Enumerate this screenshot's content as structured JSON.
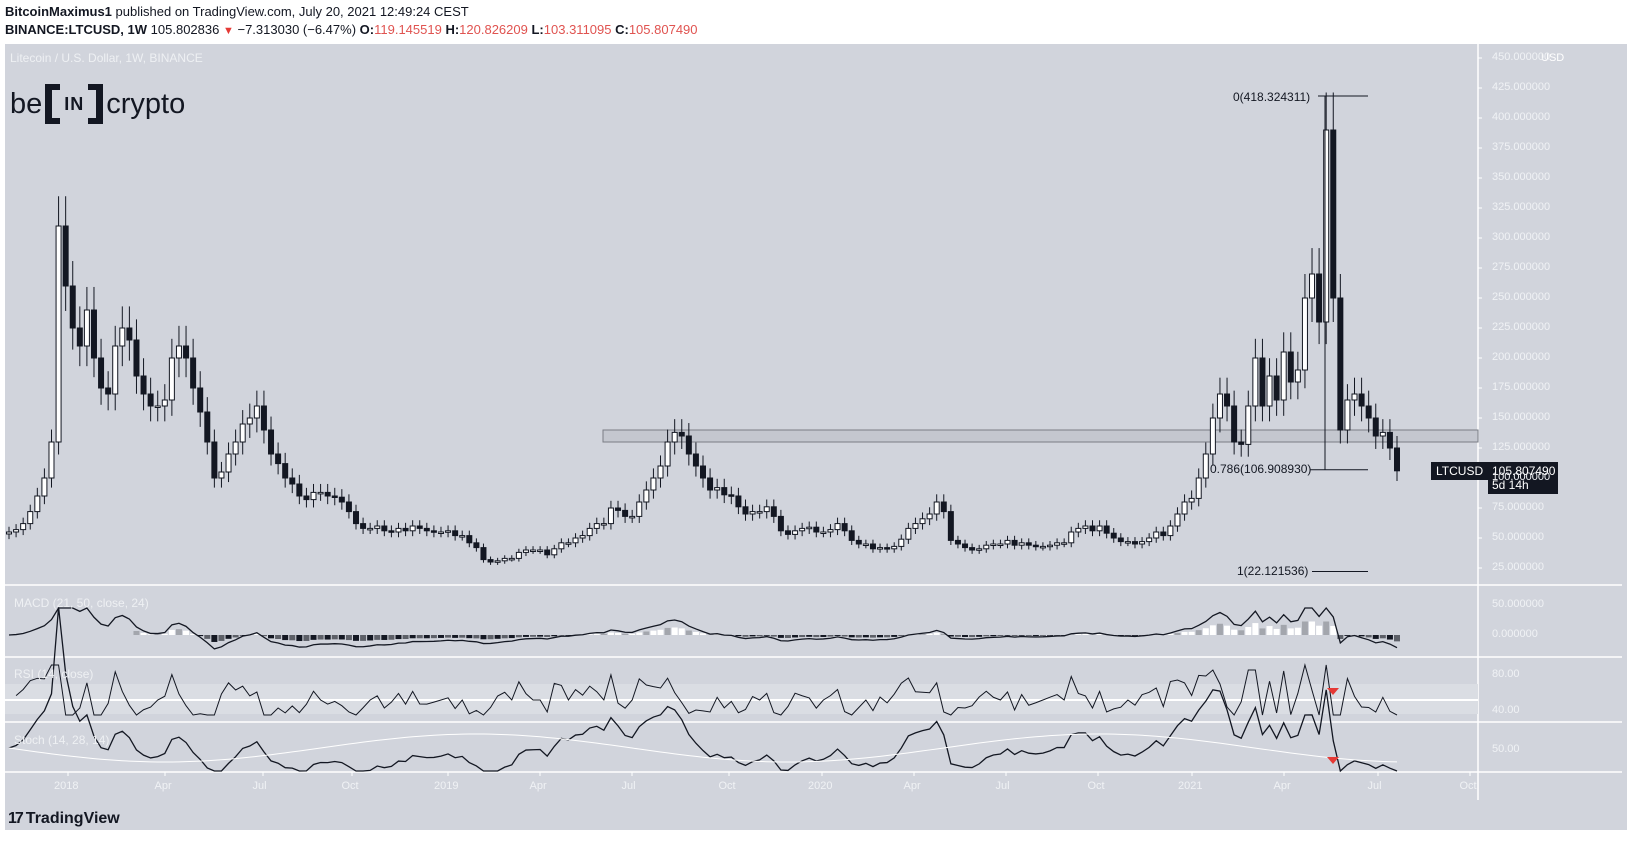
{
  "header": {
    "publisher": "BitcoinMaximus1",
    "published_text": "published on TradingView.com, July 20, 2021 12:49:24 CEST",
    "symbol": "BINANCE:LTCUSD, 1W",
    "last": "105.802836",
    "change": "−7.313030 (−6.47%)",
    "open_label": "O:",
    "open": "119.145519",
    "high_label": "H:",
    "high": "120.826209",
    "low_label": "L:",
    "low": "103.311095",
    "close_label": "C:",
    "close": "105.807490"
  },
  "chart": {
    "watermark": "Litecoin / U.S. Dollar, 1W, BINANCE",
    "logo_left": "be",
    "logo_mid": "IN",
    "logo_right": "crypto",
    "currency": "USD",
    "price_tag_symbol": "LTCUSD",
    "price_tag_value": "105.807490",
    "price_tag_countdown": "5d 14h",
    "fib_0": "0(418.324311)",
    "fib_0786": "0.786(106.908930)",
    "fib_1": "1(22.121536)",
    "macd_title": "MACD (21, 50, close, 24)",
    "rsi_title": "RSI (14, close)",
    "stoch_title": "Stoch (14, 28, 14)"
  },
  "footer": {
    "brand": "TradingView"
  },
  "chart_data": {
    "type": "candlestick",
    "title": "Litecoin / U.S. Dollar, 1W, BINANCE",
    "price_axis": {
      "ticks": [
        "450.000000",
        "425.000000",
        "400.000000",
        "375.000000",
        "350.000000",
        "325.000000",
        "300.000000",
        "275.000000",
        "250.000000",
        "225.000000",
        "200.000000",
        "175.000000",
        "150.000000",
        "125.000000",
        "100.000000",
        "75.000000",
        "50.000000",
        "25.000000"
      ],
      "range": [
        10,
        460
      ]
    },
    "time_axis": {
      "ticks": [
        "2018",
        "Apr",
        "Jul",
        "Oct",
        "2019",
        "Apr",
        "Jul",
        "Oct",
        "2020",
        "Apr",
        "Jul",
        "Oct",
        "2021",
        "Apr",
        "Jul",
        "Oct"
      ]
    },
    "horizontal_zone": {
      "low": 130,
      "high": 140
    },
    "fib_levels": [
      {
        "ratio": 0,
        "price": 418.324311
      },
      {
        "ratio": 0.786,
        "price": 106.90893
      },
      {
        "ratio": 1,
        "price": 22.121536
      }
    ],
    "last_price": 105.80749,
    "closes_weekly": [
      55,
      57,
      62,
      72,
      85,
      100,
      130,
      310,
      260,
      225,
      210,
      240,
      200,
      175,
      170,
      210,
      225,
      215,
      185,
      170,
      160,
      160,
      165,
      200,
      210,
      200,
      175,
      155,
      130,
      100,
      105,
      120,
      130,
      145,
      150,
      160,
      140,
      120,
      112,
      100,
      95,
      85,
      82,
      88,
      88,
      85,
      84,
      80,
      72,
      62,
      58,
      58,
      60,
      56,
      55,
      58,
      56,
      60,
      58,
      56,
      55,
      55,
      56,
      52,
      52,
      46,
      42,
      32,
      30,
      31,
      33,
      33,
      38,
      40,
      40,
      40,
      36,
      41,
      46,
      46,
      50,
      52,
      58,
      62,
      62,
      75,
      73,
      68,
      68,
      80,
      90,
      100,
      110,
      130,
      138,
      135,
      120,
      110,
      100,
      90,
      92,
      86,
      85,
      76,
      70,
      72,
      72,
      76,
      68,
      56,
      53,
      56,
      58,
      59,
      55,
      55,
      57,
      62,
      56,
      48,
      45,
      45,
      41,
      42,
      41,
      43,
      49,
      58,
      62,
      66,
      70,
      80,
      72,
      48,
      45,
      42,
      40,
      41,
      44,
      45,
      45,
      48,
      44,
      46,
      44,
      43,
      43,
      44,
      46,
      46,
      55,
      58,
      60,
      56,
      60,
      54,
      50,
      47,
      47,
      45,
      47,
      50,
      55,
      52,
      60,
      70,
      80,
      83,
      100,
      120,
      150,
      170,
      160,
      130,
      128,
      160,
      200,
      160,
      185,
      165,
      205,
      180,
      190,
      250,
      270,
      230,
      390,
      250,
      140,
      165,
      170,
      160,
      150,
      135,
      138,
      125,
      106
    ],
    "macd": {
      "title": "MACD (21, 50, close, 24)",
      "ticks": [
        "50.000000",
        "0.000000"
      ]
    },
    "rsi": {
      "title": "RSI (14, close)",
      "ticks": [
        "80.00",
        "40.00"
      ]
    },
    "stoch": {
      "title": "Stoch (14, 28, 14)",
      "ticks": [
        "50.00"
      ]
    }
  }
}
